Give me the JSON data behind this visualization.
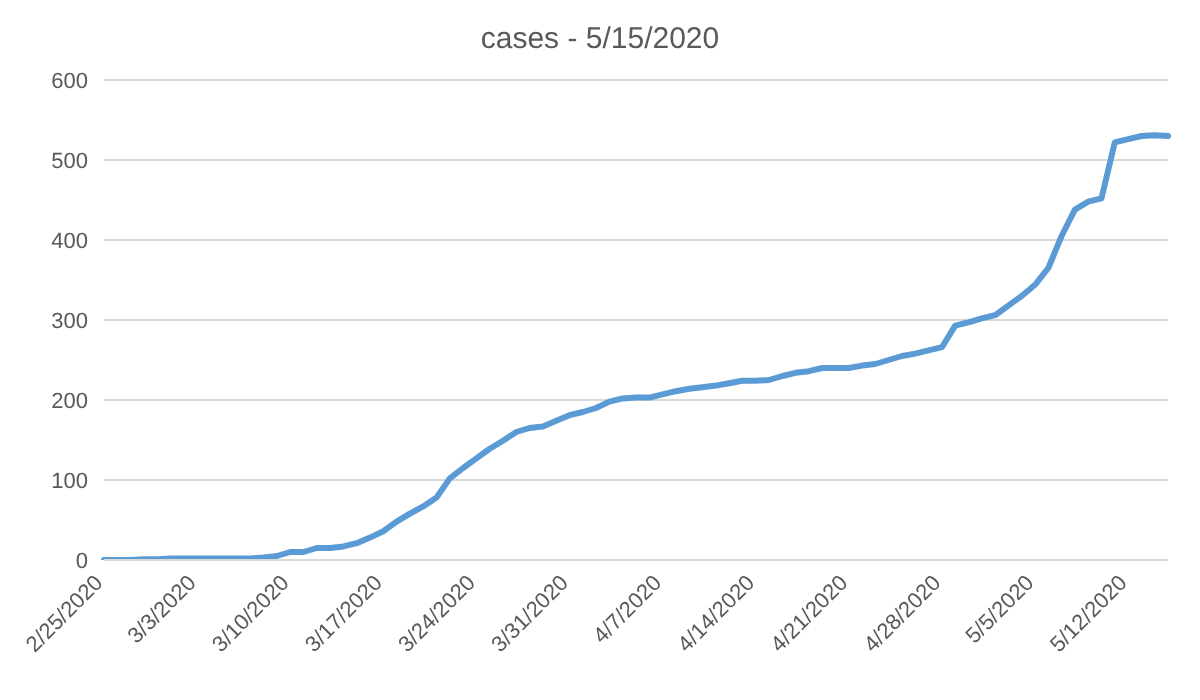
{
  "chart_data": {
    "type": "line",
    "title": "cases - 5/15/2020",
    "categories": [
      "2/25/2020",
      null,
      null,
      null,
      null,
      null,
      null,
      "3/3/2020",
      null,
      null,
      null,
      null,
      null,
      null,
      "3/10/2020",
      null,
      null,
      null,
      null,
      null,
      null,
      "3/17/2020",
      null,
      null,
      null,
      null,
      null,
      null,
      "3/24/2020",
      null,
      null,
      null,
      null,
      null,
      null,
      "3/31/2020",
      null,
      null,
      null,
      null,
      null,
      null,
      "4/7/2020",
      null,
      null,
      null,
      null,
      null,
      null,
      "4/14/2020",
      null,
      null,
      null,
      null,
      null,
      null,
      "4/21/2020",
      null,
      null,
      null,
      null,
      null,
      null,
      "4/28/2020",
      null,
      null,
      null,
      null,
      null,
      null,
      "5/5/2020",
      null,
      null,
      null,
      null,
      null,
      null,
      "5/12/2020",
      null,
      null,
      null
    ],
    "series": [
      {
        "color": "#5b9bd5",
        "values": [
          0,
          0,
          0,
          1,
          1,
          2,
          2,
          2,
          2,
          2,
          2,
          2,
          3,
          5,
          10,
          10,
          15,
          15,
          17,
          21,
          28,
          36,
          48,
          58,
          67,
          78,
          102,
          115,
          127,
          139,
          149,
          160,
          165,
          167,
          174,
          181,
          185,
          190,
          198,
          202,
          203,
          203,
          207,
          211,
          214,
          216,
          218,
          221,
          224,
          224,
          225,
          230,
          234,
          236,
          240,
          240,
          240,
          243,
          245,
          250,
          255,
          258,
          262,
          266,
          293,
          297,
          302,
          306,
          318,
          330,
          344,
          365,
          405,
          438,
          448,
          452,
          522,
          526,
          530,
          531,
          530
        ]
      }
    ],
    "ylim": [
      0,
      600
    ],
    "yticks": [
      0,
      100,
      200,
      300,
      400,
      500,
      600
    ],
    "grid": "y",
    "marker": "none",
    "line_style": "solid"
  }
}
